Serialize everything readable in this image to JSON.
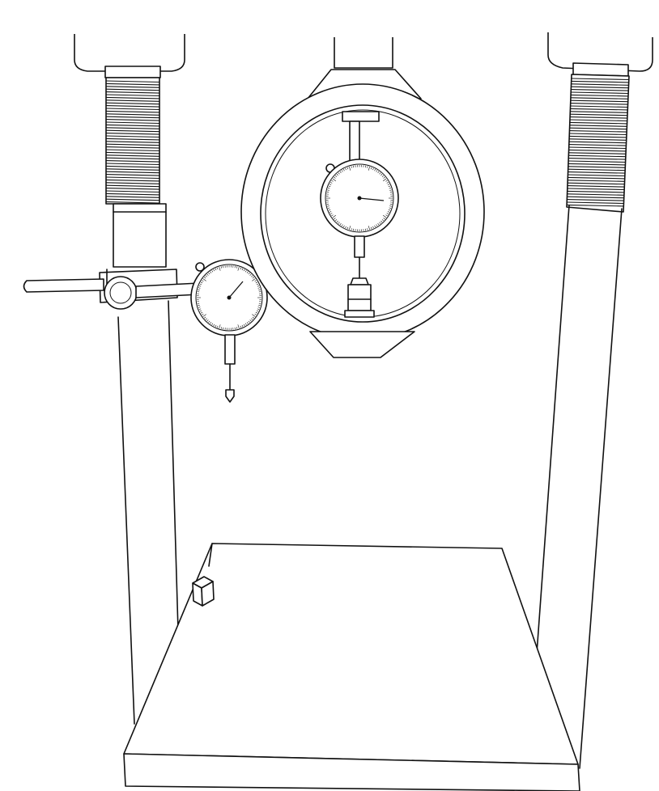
{
  "figure": {
    "background": "#ffffff",
    "line_color": "#111111",
    "components": [
      "left-column",
      "right-column",
      "left-screw",
      "right-screw",
      "proving-ring",
      "ring-dial-gauge",
      "side-dial-gauge",
      "magnetic-stand-arm",
      "base-plate",
      "specimen-block"
    ]
  }
}
